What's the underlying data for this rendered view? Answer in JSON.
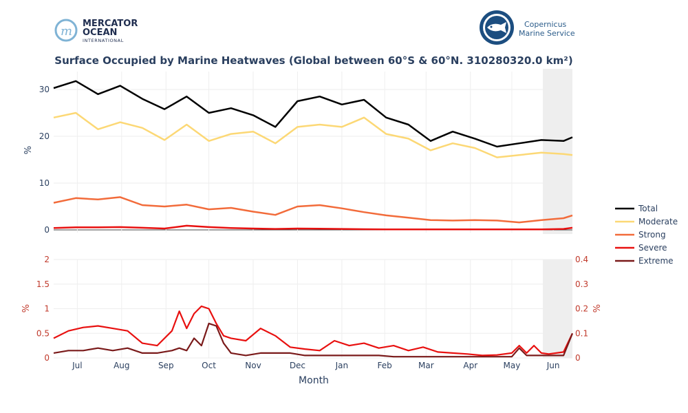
{
  "logos": {
    "left": {
      "line1": "MERCATOR",
      "line2": "OCEAN",
      "line3": "INTERNATIONAL"
    },
    "right": {
      "line1": "Copernicus",
      "line2": "Marine Service"
    }
  },
  "colors": {
    "total": "#000000",
    "moderate": "#FCD875",
    "strong": "#F26B3A",
    "severe": "#E8100F",
    "extreme": "#7A1A1A",
    "forecast_shade": "#EEEEEE",
    "axis_text": "#2A3F5F",
    "right_axis": "#C0392B",
    "grid": "#EEEEEE"
  },
  "chart_data": [
    {
      "type": "line",
      "title": "Surface Occupied by Marine Heatwaves (Global between 60°S & 60°N. 310280320.0 km²)",
      "ylabel": "%",
      "ylim": [
        0,
        35
      ],
      "yticks": [
        "0",
        "10",
        "20",
        "30"
      ],
      "x": [
        0,
        15,
        30,
        45,
        60,
        75,
        90,
        105,
        120,
        135,
        150,
        165,
        180,
        195,
        210,
        225,
        240,
        255,
        270,
        285,
        300,
        315,
        330,
        345,
        351
      ],
      "forecast_start": 331,
      "series": [
        {
          "name": "Total",
          "values": [
            30.3,
            31.8,
            29.0,
            30.8,
            28.0,
            25.8,
            28.5,
            25.0,
            26.0,
            24.5,
            22.0,
            27.5,
            28.5,
            26.8,
            27.8,
            24.0,
            22.5,
            19.0,
            21.0,
            19.5,
            17.8,
            18.5,
            19.2,
            19.0,
            19.8
          ]
        },
        {
          "name": "Moderate",
          "values": [
            24.0,
            25.0,
            21.5,
            23.0,
            21.8,
            19.2,
            22.5,
            19.0,
            20.5,
            21.0,
            18.5,
            22.0,
            22.5,
            22.0,
            24.0,
            20.5,
            19.5,
            17.0,
            18.5,
            17.5,
            15.5,
            16.0,
            16.5,
            16.2,
            16.0
          ]
        },
        {
          "name": "Strong",
          "values": [
            5.8,
            6.8,
            6.5,
            7.0,
            5.3,
            5.0,
            5.4,
            4.4,
            4.7,
            3.9,
            3.2,
            5.0,
            5.3,
            4.6,
            3.8,
            3.1,
            2.6,
            2.1,
            2.0,
            2.1,
            2.0,
            1.6,
            2.1,
            2.5,
            3.1
          ]
        },
        {
          "name": "Severe",
          "values": [
            0.4,
            0.55,
            0.55,
            0.6,
            0.45,
            0.3,
            0.9,
            0.6,
            0.4,
            0.3,
            0.2,
            0.3,
            0.25,
            0.2,
            0.15,
            0.12,
            0.12,
            0.1,
            0.1,
            0.1,
            0.12,
            0.1,
            0.1,
            0.2,
            0.45
          ]
        }
      ]
    },
    {
      "type": "line",
      "xlabel": "Month",
      "ylabel": "%",
      "ylim": [
        0,
        2
      ],
      "yticks": [
        "0",
        "0.5",
        "1",
        "1.5",
        "2"
      ],
      "ylabel_right": "%",
      "ylim_right": [
        0,
        0.4
      ],
      "yticks_right": [
        "0",
        "0.1",
        "0.2",
        "0.3",
        "0.4"
      ],
      "x_tick_labels": [
        "Jul",
        "Aug",
        "Sep",
        "Oct",
        "Nov",
        "Dec",
        "Jan",
        "Feb",
        "Mar",
        "Apr",
        "May",
        "Jun"
      ],
      "x_tick_positions": [
        16,
        46,
        76,
        105,
        135,
        165,
        195,
        224,
        252,
        282,
        310,
        338
      ],
      "x": [
        0,
        10,
        20,
        30,
        40,
        50,
        60,
        70,
        80,
        85,
        90,
        95,
        100,
        105,
        110,
        115,
        120,
        130,
        140,
        150,
        160,
        170,
        180,
        190,
        200,
        210,
        220,
        230,
        240,
        250,
        260,
        270,
        280,
        290,
        300,
        310,
        315,
        320,
        325,
        330,
        335,
        340,
        345,
        351
      ],
      "series": [
        {
          "name": "Severe",
          "axis": "left",
          "values": [
            0.4,
            0.55,
            0.62,
            0.65,
            0.6,
            0.55,
            0.3,
            0.25,
            0.55,
            0.95,
            0.6,
            0.9,
            1.05,
            1.0,
            0.7,
            0.45,
            0.4,
            0.35,
            0.6,
            0.45,
            0.22,
            0.18,
            0.15,
            0.35,
            0.25,
            0.3,
            0.2,
            0.25,
            0.15,
            0.22,
            0.12,
            0.1,
            0.08,
            0.05,
            0.06,
            0.1,
            0.25,
            0.1,
            0.25,
            0.1,
            0.08,
            0.1,
            0.12,
            0.5
          ]
        },
        {
          "name": "Extreme",
          "axis": "right",
          "values": [
            0.02,
            0.03,
            0.03,
            0.04,
            0.03,
            0.04,
            0.02,
            0.02,
            0.03,
            0.04,
            0.03,
            0.08,
            0.05,
            0.14,
            0.13,
            0.06,
            0.02,
            0.01,
            0.02,
            0.02,
            0.02,
            0.01,
            0.01,
            0.01,
            0.01,
            0.01,
            0.01,
            0.005,
            0.005,
            0.005,
            0.005,
            0.005,
            0.005,
            0.005,
            0.005,
            0.005,
            0.04,
            0.01,
            0.01,
            0.01,
            0.01,
            0.01,
            0.01,
            0.1
          ]
        }
      ]
    }
  ],
  "legend": [
    "Total",
    "Moderate",
    "Strong",
    "Severe",
    "Extreme"
  ]
}
